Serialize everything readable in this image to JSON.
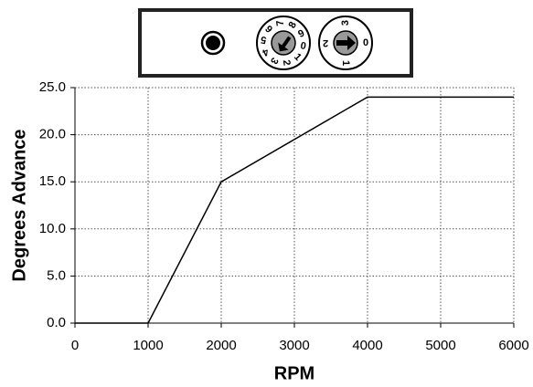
{
  "chart_data": {
    "type": "line",
    "x_label": "RPM",
    "y_label": "Degrees Advance",
    "x": [
      0,
      1000,
      2000,
      4000,
      6000
    ],
    "values": [
      0,
      0,
      15,
      24,
      24
    ],
    "color": "#000000",
    "xlim": [
      0,
      6000
    ],
    "xticks": [
      0,
      1000,
      2000,
      3000,
      4000,
      5000,
      6000
    ],
    "ylim": [
      0,
      25
    ],
    "yticks": [
      {
        "value": 0,
        "label": "0.0"
      },
      {
        "value": 5,
        "label": "5.0"
      },
      {
        "value": 10,
        "label": "10.0"
      },
      {
        "value": 15,
        "label": "15.0"
      },
      {
        "value": 20,
        "label": "20.0"
      },
      {
        "value": 25,
        "label": "25.0"
      }
    ],
    "grid": true
  },
  "selector": {
    "dial_a": [
      "0",
      "1",
      "2",
      "3",
      "4",
      "5",
      "6",
      "7",
      "8",
      "9"
    ],
    "dial_b": [
      "0",
      "1",
      "2",
      "3"
    ]
  }
}
